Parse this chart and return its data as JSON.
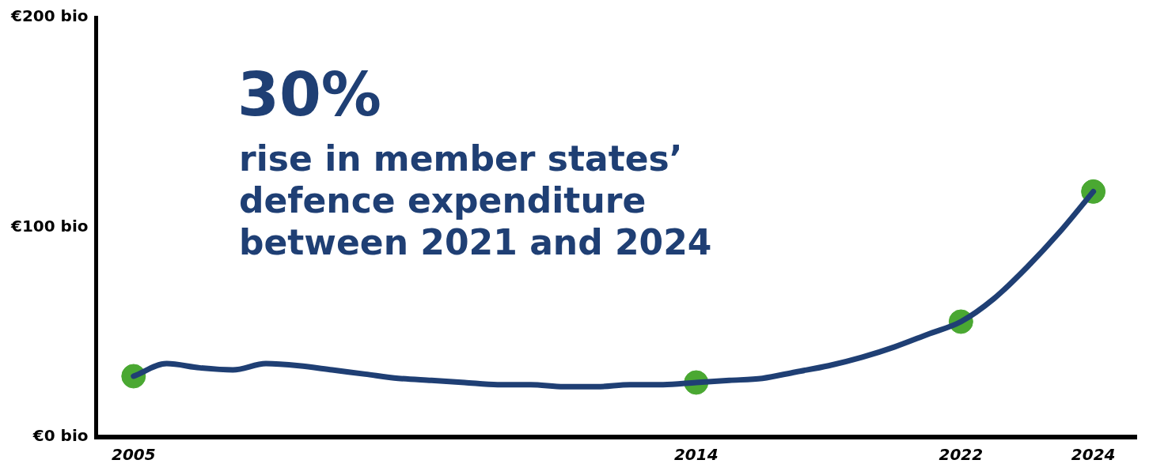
{
  "chart_data": {
    "type": "line",
    "title": "30%",
    "subtitle": "rise in member states’ defence expenditure between 2021 and 2024",
    "categories": [
      "2005",
      null,
      null,
      null,
      null,
      null,
      null,
      null,
      null,
      null,
      null,
      null,
      null,
      null,
      null,
      null,
      null,
      "2014",
      null,
      null,
      null,
      null,
      null,
      null,
      null,
      "2022",
      null,
      null,
      null,
      "2024"
    ],
    "series": [
      {
        "color": "#1f3f74",
        "marker": "none",
        "values": [
          29,
          35,
          33,
          32,
          35,
          34,
          32,
          30,
          28,
          27,
          26,
          25,
          25,
          24,
          24,
          25,
          25,
          26,
          27,
          28,
          31,
          34,
          38,
          43,
          49,
          55,
          66,
          81,
          98,
          117
        ]
      },
      {
        "type": "scatter",
        "color": "#4aa832",
        "marker": "circle",
        "values": [
          29,
          null,
          null,
          null,
          null,
          null,
          null,
          null,
          null,
          null,
          null,
          null,
          null,
          null,
          null,
          null,
          null,
          26,
          null,
          null,
          null,
          null,
          null,
          null,
          null,
          55,
          null,
          null,
          null,
          117
        ]
      }
    ],
    "ylim": [
      0,
      200
    ],
    "yticks": [
      {
        "value": 0,
        "label": "€0 bio"
      },
      {
        "value": 100,
        "label": "€100 bio"
      },
      {
        "value": 200,
        "label": "€200 bio"
      }
    ],
    "grid": false,
    "legend": false
  }
}
